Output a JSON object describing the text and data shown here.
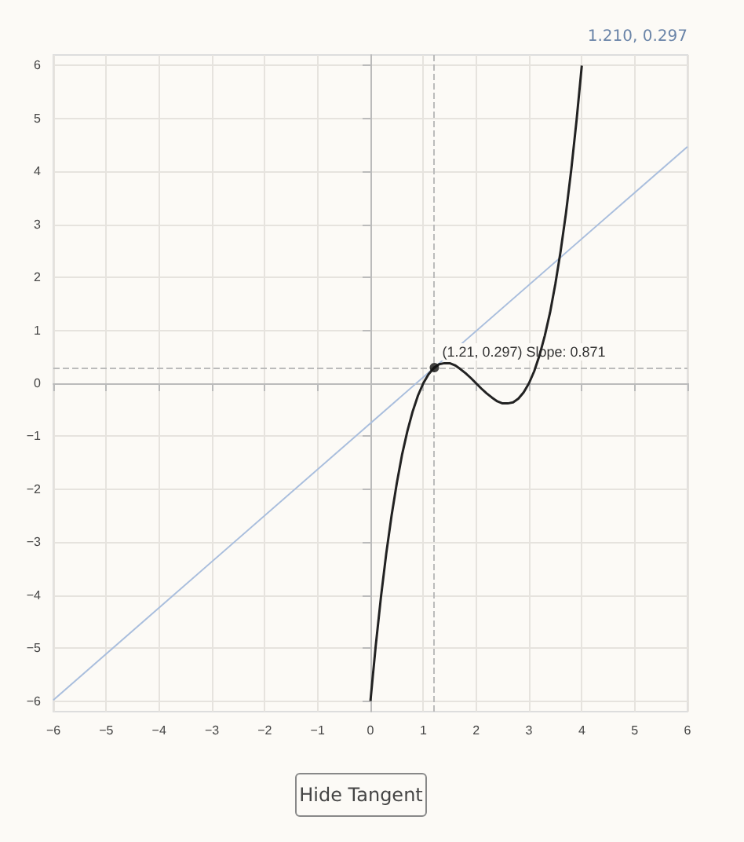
{
  "chart_data": {
    "type": "line",
    "x": [
      0,
      0.1,
      0.2,
      0.3,
      0.4,
      0.5,
      0.6,
      0.7,
      0.8,
      0.9,
      1.0,
      1.1,
      1.2,
      1.3,
      1.4,
      1.5,
      1.6,
      1.7,
      1.8,
      1.9,
      2.0,
      2.1,
      2.2,
      2.3,
      2.4,
      2.5,
      2.6,
      2.7,
      2.8,
      2.9,
      3.0,
      3.1,
      3.2,
      3.3,
      3.4,
      3.5,
      3.6,
      3.7,
      3.8,
      3.9,
      4.0
    ],
    "series": [
      {
        "color": "#222222",
        "values": [
          -6,
          -4.96,
          -4.03,
          -3.21,
          -2.5,
          -1.88,
          -1.34,
          -0.9,
          -0.53,
          -0.23,
          0,
          0.17,
          0.29,
          0.36,
          0.38,
          0.38,
          0.34,
          0.27,
          0.19,
          0.1,
          0,
          -0.1,
          -0.19,
          -0.27,
          -0.34,
          -0.38,
          -0.38,
          -0.36,
          -0.29,
          -0.17,
          0,
          0.23,
          0.53,
          0.9,
          1.34,
          1.88,
          2.5,
          3.21,
          4.03,
          4.96,
          6
        ]
      },
      {
        "color": "#a9bedd",
        "x": [
          -6,
          6
        ],
        "values": [
          -5.98,
          4.47
        ]
      },
      {
        "type": "scatter",
        "color": "#111111",
        "marker": "circle",
        "x": [
          1.21
        ],
        "values": [
          0.297
        ]
      }
    ],
    "xlim": [
      -6,
      6
    ],
    "ylim": [
      -6.2,
      6.2
    ],
    "xticks": [
      {
        "value": -6,
        "label": "−6"
      },
      {
        "value": -5,
        "label": "−5"
      },
      {
        "value": -4,
        "label": "−4"
      },
      {
        "value": -3,
        "label": "−3"
      },
      {
        "value": -2,
        "label": "−2"
      },
      {
        "value": -1,
        "label": "−1"
      },
      0,
      1,
      2,
      3,
      4,
      5,
      6
    ],
    "yticks": [
      {
        "value": -6,
        "label": "−6"
      },
      {
        "value": -5,
        "label": "−5"
      },
      {
        "value": -4,
        "label": "−4"
      },
      {
        "value": -3,
        "label": "−3"
      },
      {
        "value": -2,
        "label": "−2"
      },
      {
        "value": -1,
        "label": "−1"
      },
      0,
      1,
      2,
      3,
      4,
      5,
      6
    ],
    "grid": true,
    "marker": "none",
    "ref_lines": [
      {
        "axis": "x",
        "value": 1.21,
        "color": "#bbbbbb",
        "line_style": "dashed"
      },
      {
        "axis": "y",
        "value": 0.297,
        "color": "#bbbbbb",
        "line_style": "dashed"
      }
    ],
    "annotations": [
      {
        "text": "(1.21, 0.297) Slope: 0.871",
        "x": 1.21,
        "y": 0.297
      },
      "1.210, 0.297",
      "Hide Tangent"
    ]
  }
}
